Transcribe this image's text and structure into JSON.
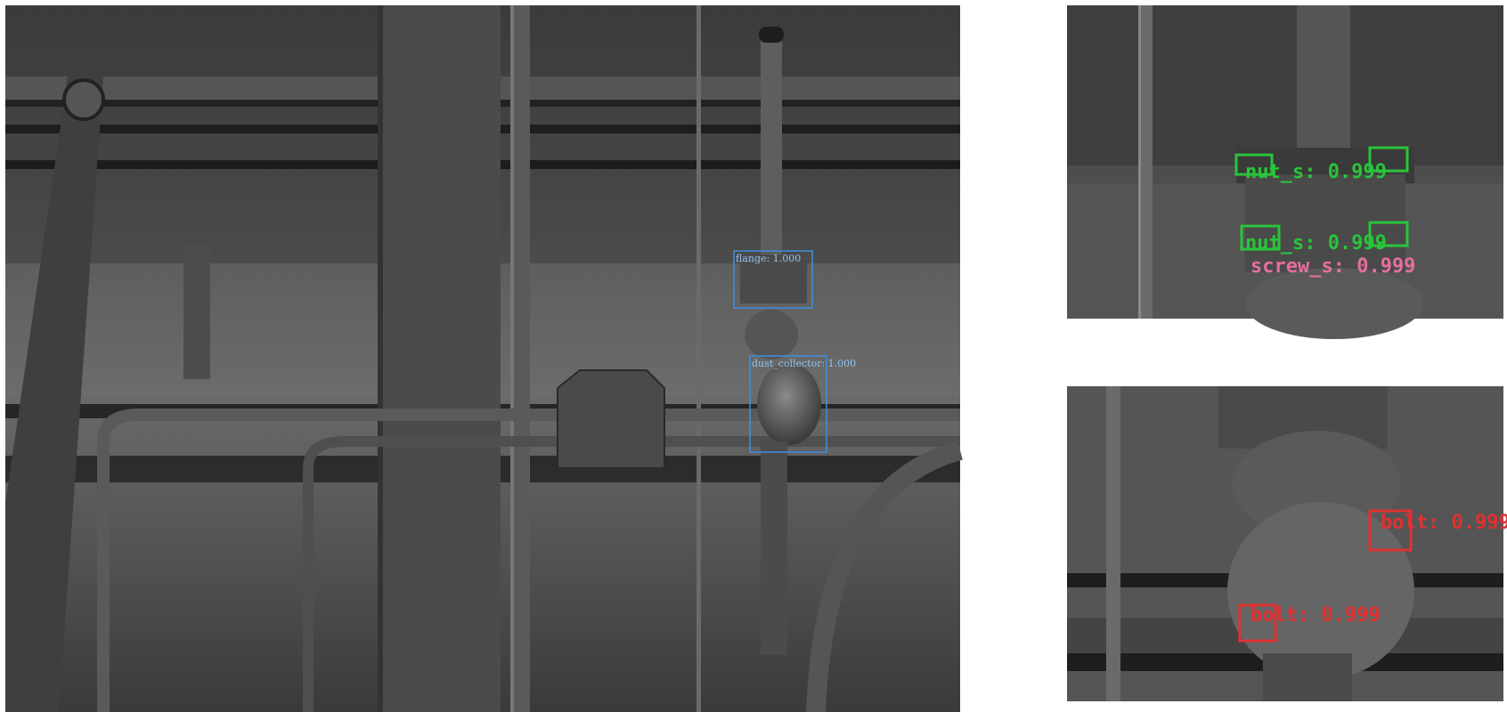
{
  "main_view": {
    "detections": [
      {
        "label": "flange: 1.000",
        "color": "#3d8fe0"
      },
      {
        "label": "dust_collector: 1.000",
        "color": "#3d8fe0"
      }
    ]
  },
  "crop_top": {
    "detections": [
      {
        "label": "nut_s: 0.999",
        "color": "#29c43a"
      },
      {
        "label": "nut_s: 0.999",
        "color": "#29c43a"
      },
      {
        "label": "screw_s: 0.999",
        "color": "#e46f9e"
      }
    ]
  },
  "crop_bottom": {
    "detections": [
      {
        "label": "bolt: 0.999",
        "color": "#e03131"
      },
      {
        "label": "bolt: 0.999",
        "color": "#e03131"
      }
    ]
  }
}
